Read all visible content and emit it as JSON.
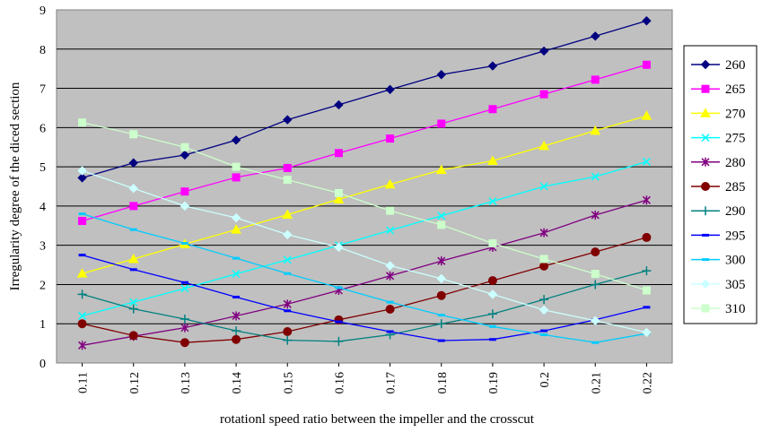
{
  "chart_data": {
    "type": "line",
    "title": "",
    "xlabel": "rotationl speed ratio between the impeller and the crosscut",
    "ylabel": "Irregularity degree of the diced section",
    "categories": [
      "0.11",
      "0.12",
      "0.13",
      "0.14",
      "0.15",
      "0.16",
      "0.17",
      "0.18",
      "0.19",
      "0.2",
      "0.21",
      "0.22"
    ],
    "ylim": [
      0,
      9
    ],
    "yticks": [
      "0",
      "1",
      "2",
      "3",
      "4",
      "5",
      "6",
      "7",
      "8",
      "9"
    ],
    "grid": "horizontal",
    "plot_background": "#c0c0c0",
    "legend_position": "right",
    "series": [
      {
        "name": "260",
        "color": "#000080",
        "marker": "diamond",
        "values": [
          4.72,
          5.1,
          5.3,
          5.68,
          6.2,
          6.58,
          6.97,
          7.35,
          7.57,
          7.95,
          8.33,
          8.72
        ]
      },
      {
        "name": "265",
        "color": "#ff00ff",
        "marker": "square",
        "values": [
          3.62,
          4.0,
          4.37,
          4.73,
          4.97,
          5.35,
          5.72,
          6.1,
          6.47,
          6.85,
          7.22,
          7.6
        ]
      },
      {
        "name": "270",
        "color": "#ffff00",
        "marker": "triangle",
        "values": [
          2.28,
          2.65,
          3.03,
          3.4,
          3.78,
          4.17,
          4.55,
          4.92,
          5.15,
          5.53,
          5.92,
          6.3
        ]
      },
      {
        "name": "275",
        "color": "#00ffff",
        "marker": "x",
        "values": [
          1.2,
          1.55,
          1.9,
          2.27,
          2.63,
          3.0,
          3.38,
          3.75,
          4.12,
          4.5,
          4.75,
          5.13
        ]
      },
      {
        "name": "280",
        "color": "#800080",
        "marker": "asterisk",
        "values": [
          0.45,
          0.68,
          0.9,
          1.2,
          1.5,
          1.85,
          2.22,
          2.6,
          2.95,
          3.32,
          3.77,
          4.15
        ]
      },
      {
        "name": "285",
        "color": "#800000",
        "marker": "circle",
        "values": [
          1.0,
          0.7,
          0.52,
          0.6,
          0.8,
          1.1,
          1.37,
          1.72,
          2.1,
          2.47,
          2.83,
          3.2
        ]
      },
      {
        "name": "290",
        "color": "#008080",
        "marker": "plus",
        "values": [
          1.75,
          1.38,
          1.12,
          0.82,
          0.58,
          0.55,
          0.72,
          1.0,
          1.25,
          1.62,
          2.0,
          2.35
        ]
      },
      {
        "name": "295",
        "color": "#0000ff",
        "marker": "dash",
        "values": [
          2.75,
          2.38,
          2.05,
          1.68,
          1.33,
          1.05,
          0.8,
          0.57,
          0.6,
          0.82,
          1.1,
          1.42
        ]
      },
      {
        "name": "300",
        "color": "#00ccff",
        "marker": "dash",
        "values": [
          3.8,
          3.4,
          3.05,
          2.67,
          2.28,
          1.92,
          1.55,
          1.22,
          0.93,
          0.72,
          0.52,
          0.75
        ]
      },
      {
        "name": "305",
        "color": "#ccffff",
        "marker": "diamond",
        "values": [
          4.9,
          4.45,
          4.0,
          3.7,
          3.27,
          2.95,
          2.48,
          2.15,
          1.75,
          1.35,
          1.08,
          0.78
        ]
      },
      {
        "name": "310",
        "color": "#ccffcc",
        "marker": "square",
        "values": [
          6.13,
          5.83,
          5.5,
          5.0,
          4.67,
          4.33,
          3.88,
          3.52,
          3.05,
          2.65,
          2.27,
          1.85
        ]
      }
    ]
  }
}
